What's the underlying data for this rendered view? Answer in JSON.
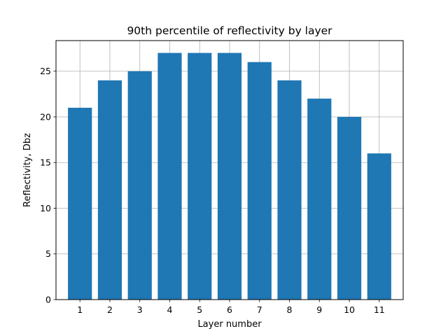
{
  "chart_data": {
    "type": "bar",
    "title": "90th percentile of reflectivity by layer",
    "xlabel": "Layer number",
    "ylabel": "Reflectivity, Dbz",
    "categories": [
      "1",
      "2",
      "3",
      "4",
      "5",
      "6",
      "7",
      "8",
      "9",
      "10",
      "11"
    ],
    "values": [
      21,
      24,
      25,
      27,
      27,
      27,
      26,
      24,
      22,
      20,
      16
    ],
    "ylim": [
      0,
      28.35
    ],
    "yticks": [
      0,
      5,
      10,
      15,
      20,
      25
    ],
    "grid": true,
    "bar_color": "#1f77b4",
    "grid_color": "#b0b0b0"
  }
}
